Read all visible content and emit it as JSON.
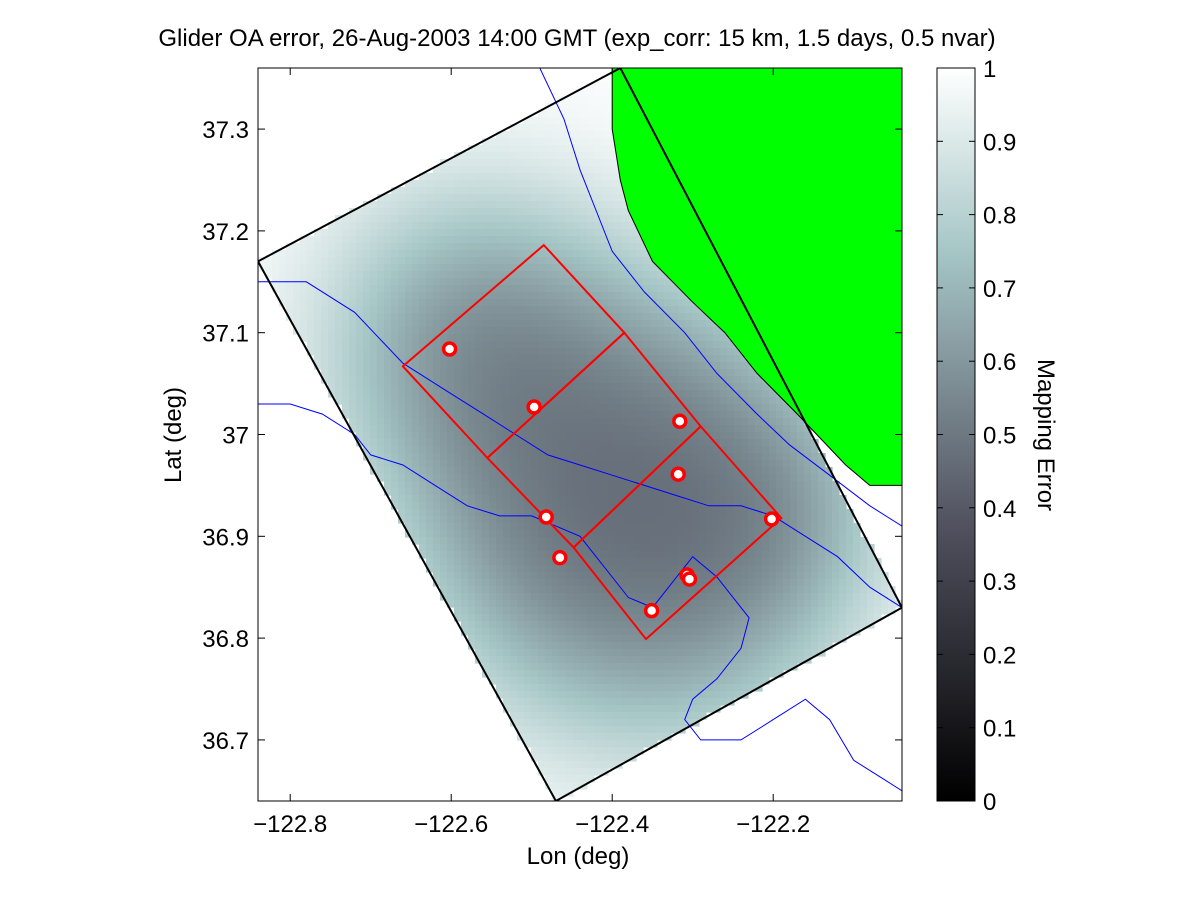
{
  "chart_data": {
    "type": "heatmap",
    "title": "Glider OA error, 26-Aug-2003 14:00 GMT (exp_corr: 15 km, 1.5 days, 0.5 nvar)",
    "xlabel": "Lon (deg)",
    "ylabel": "Lat (deg)",
    "xlim": [
      -122.84,
      -122.04
    ],
    "ylim": [
      36.64,
      37.36
    ],
    "xticks": [
      -122.8,
      -122.6,
      -122.4,
      -122.2
    ],
    "xtick_labels": [
      "−122.8",
      "−122.6",
      "−122.4",
      "−122.2"
    ],
    "yticks": [
      36.7,
      36.8,
      36.9,
      37.0,
      37.1,
      37.2,
      37.3
    ],
    "ytick_labels": [
      "36.7",
      "36.8",
      "36.9",
      "37",
      "37.1",
      "37.2",
      "37.3"
    ],
    "grid": false,
    "colorbar": {
      "label": "Mapping Error",
      "range": [
        0,
        1
      ],
      "ticks": [
        0,
        0.1,
        0.2,
        0.3,
        0.4,
        0.5,
        0.6,
        0.7,
        0.8,
        0.9,
        1
      ],
      "tick_labels": [
        "0",
        "0.1",
        "0.2",
        "0.3",
        "0.4",
        "0.5",
        "0.6",
        "0.7",
        "0.8",
        "0.9",
        "1"
      ],
      "colormap": "bone"
    },
    "domain_box": {
      "color": "#000000",
      "corners": [
        [
          -122.84,
          37.17
        ],
        [
          -122.39,
          37.36
        ],
        [
          -122.04,
          36.83
        ],
        [
          -122.47,
          36.64
        ]
      ]
    },
    "sampling_boxes": {
      "color": "#ff0000",
      "boxes": [
        [
          [
            -122.66,
            37.067
          ],
          [
            -122.485,
            37.186
          ],
          [
            -122.385,
            37.1
          ],
          [
            -122.555,
            36.977
          ]
        ],
        [
          [
            -122.555,
            36.977
          ],
          [
            -122.385,
            37.1
          ],
          [
            -122.29,
            37.008
          ],
          [
            -122.448,
            36.889
          ]
        ],
        [
          [
            -122.448,
            36.889
          ],
          [
            -122.29,
            37.008
          ],
          [
            -122.19,
            36.918
          ],
          [
            -122.358,
            36.799
          ]
        ]
      ]
    },
    "glider_positions": {
      "color": "#ff0000",
      "points": [
        {
          "lon": -122.602,
          "lat": 37.084
        },
        {
          "lon": -122.497,
          "lat": 37.027
        },
        {
          "lon": -122.316,
          "lat": 37.013
        },
        {
          "lon": -122.318,
          "lat": 36.961
        },
        {
          "lon": -122.482,
          "lat": 36.919
        },
        {
          "lon": -122.465,
          "lat": 36.879
        },
        {
          "lon": -122.202,
          "lat": 36.917
        },
        {
          "lon": -122.307,
          "lat": 36.862
        },
        {
          "lon": -122.304,
          "lat": 36.858
        },
        {
          "lon": -122.351,
          "lat": 36.827
        }
      ]
    },
    "error_minima": [
      {
        "lon": -122.58,
        "lat": 37.1,
        "radius_km": 12,
        "depth": 0.5
      },
      {
        "lon": -122.5,
        "lat": 37.03,
        "radius_km": 11,
        "depth": 0.42
      },
      {
        "lon": -122.33,
        "lat": 36.99,
        "radius_km": 13,
        "depth": 0.5
      },
      {
        "lon": -122.46,
        "lat": 36.9,
        "radius_km": 12,
        "depth": 0.45
      },
      {
        "lon": -122.33,
        "lat": 36.86,
        "radius_km": 14,
        "depth": 0.55
      },
      {
        "lon": -122.22,
        "lat": 36.92,
        "radius_km": 9,
        "depth": 0.35
      }
    ],
    "land": {
      "color": "#00ff00",
      "outline": [
        [
          -122.4,
          37.36
        ],
        [
          -122.04,
          37.36
        ],
        [
          -122.04,
          36.95
        ],
        [
          -122.08,
          36.95
        ],
        [
          -122.11,
          36.97
        ],
        [
          -122.17,
          37.02
        ],
        [
          -122.22,
          37.06
        ],
        [
          -122.26,
          37.1
        ],
        [
          -122.3,
          37.13
        ],
        [
          -122.35,
          37.17
        ],
        [
          -122.38,
          37.22
        ],
        [
          -122.39,
          37.25
        ],
        [
          -122.4,
          37.3
        ]
      ]
    },
    "isobaths": {
      "color": "#0000ff",
      "lines": [
        [
          [
            -122.84,
            37.15
          ],
          [
            -122.78,
            37.15
          ],
          [
            -122.72,
            37.12
          ],
          [
            -122.66,
            37.07
          ],
          [
            -122.6,
            37.04
          ],
          [
            -122.56,
            37.02
          ],
          [
            -122.52,
            37.0
          ],
          [
            -122.48,
            36.98
          ],
          [
            -122.44,
            36.97
          ],
          [
            -122.4,
            36.96
          ],
          [
            -122.36,
            36.95
          ],
          [
            -122.32,
            36.94
          ],
          [
            -122.28,
            36.93
          ],
          [
            -122.24,
            36.93
          ],
          [
            -122.2,
            36.92
          ],
          [
            -122.16,
            36.9
          ],
          [
            -122.12,
            36.88
          ],
          [
            -122.08,
            36.85
          ],
          [
            -122.04,
            36.83
          ]
        ],
        [
          [
            -122.84,
            37.03
          ],
          [
            -122.8,
            37.03
          ],
          [
            -122.76,
            37.02
          ],
          [
            -122.72,
            37.0
          ],
          [
            -122.7,
            36.98
          ],
          [
            -122.66,
            36.97
          ],
          [
            -122.62,
            36.95
          ],
          [
            -122.58,
            36.93
          ],
          [
            -122.54,
            36.92
          ],
          [
            -122.5,
            36.92
          ],
          [
            -122.47,
            36.91
          ],
          [
            -122.44,
            36.9
          ],
          [
            -122.42,
            36.88
          ],
          [
            -122.4,
            36.86
          ],
          [
            -122.38,
            36.84
          ],
          [
            -122.35,
            36.83
          ],
          [
            -122.33,
            36.85
          ],
          [
            -122.32,
            36.86
          ],
          [
            -122.3,
            36.88
          ],
          [
            -122.27,
            36.86
          ],
          [
            -122.25,
            36.84
          ],
          [
            -122.23,
            36.82
          ],
          [
            -122.24,
            36.79
          ],
          [
            -122.27,
            36.76
          ],
          [
            -122.3,
            36.74
          ],
          [
            -122.31,
            36.72
          ],
          [
            -122.29,
            36.7
          ],
          [
            -122.24,
            36.7
          ],
          [
            -122.2,
            36.72
          ],
          [
            -122.16,
            36.74
          ],
          [
            -122.13,
            36.72
          ],
          [
            -122.1,
            36.68
          ],
          [
            -122.06,
            36.66
          ],
          [
            -122.04,
            36.65
          ]
        ],
        [
          [
            -122.49,
            37.36
          ],
          [
            -122.46,
            37.31
          ],
          [
            -122.44,
            37.26
          ],
          [
            -122.42,
            37.22
          ],
          [
            -122.4,
            37.18
          ],
          [
            -122.36,
            37.14
          ],
          [
            -122.31,
            37.1
          ],
          [
            -122.27,
            37.06
          ],
          [
            -122.22,
            37.02
          ],
          [
            -122.18,
            36.99
          ],
          [
            -122.13,
            36.96
          ],
          [
            -122.08,
            36.93
          ],
          [
            -122.04,
            36.91
          ]
        ]
      ]
    }
  }
}
